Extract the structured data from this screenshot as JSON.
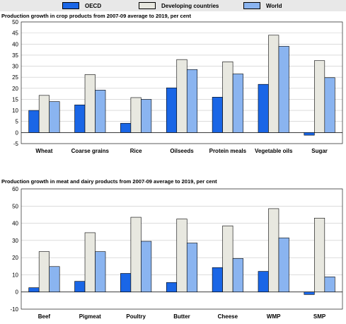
{
  "legend": {
    "items": [
      {
        "label": "OECD",
        "color": "#1a66e6"
      },
      {
        "label": "Developing countries",
        "color": "#e8e8e0"
      },
      {
        "label": "World",
        "color": "#8ab4f0"
      }
    ]
  },
  "chart_data": [
    {
      "type": "bar",
      "title": "Production growth in crop products from 2007-09 average to 2019, per cent",
      "categories": [
        "Wheat",
        "Coarse grains",
        "Rice",
        "Oilseeds",
        "Protein meals",
        "Vegetable oils",
        "Sugar"
      ],
      "series": [
        {
          "name": "OECD",
          "values": [
            10,
            12.5,
            4.2,
            20.2,
            16,
            21.8,
            -1.2
          ]
        },
        {
          "name": "Developing countries",
          "values": [
            16.8,
            26.2,
            15.8,
            33,
            32,
            44,
            32.5
          ]
        },
        {
          "name": "World",
          "values": [
            14,
            19.2,
            15,
            28.5,
            26.5,
            39,
            24.8
          ]
        }
      ],
      "ylim": [
        -5,
        50
      ],
      "yticks": [
        -5,
        0,
        5,
        10,
        15,
        20,
        25,
        30,
        35,
        40,
        45,
        50
      ],
      "grid": true
    },
    {
      "type": "bar",
      "title": "Production growth in meat and dairy products from 2007-09 average to 2019, per cent",
      "categories": [
        "Beef",
        "Pigmeat",
        "Poultry",
        "Butter",
        "Cheese",
        "WMP",
        "SMP"
      ],
      "series": [
        {
          "name": "OECD",
          "values": [
            2.5,
            6.2,
            10.8,
            5.5,
            14.2,
            12,
            -1.5
          ]
        },
        {
          "name": "Developing countries",
          "values": [
            23.5,
            34.5,
            43.5,
            42.5,
            38.5,
            48.5,
            43
          ]
        },
        {
          "name": "World",
          "values": [
            14.8,
            23.5,
            29.5,
            28.5,
            19.5,
            31.5,
            8.8
          ]
        }
      ],
      "ylim": [
        -10,
        60
      ],
      "yticks": [
        -10,
        0,
        10,
        20,
        30,
        40,
        50,
        60
      ],
      "grid": true
    }
  ]
}
